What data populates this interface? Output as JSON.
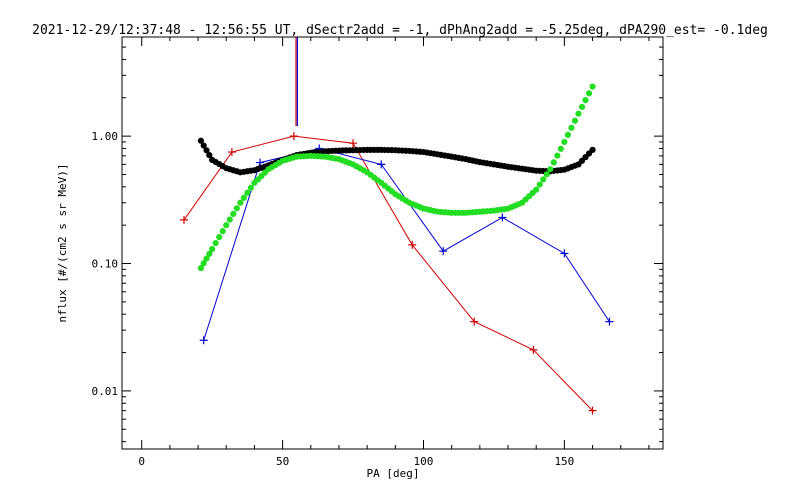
{
  "chart_data": {
    "type": "line",
    "title": "2021-12-29/12:37:48 - 12:56:55 UT, dSectr2add = -1, dPhAng2add = -5.25deg, dPA290_est=  -0.1deg",
    "xlabel": "PA [deg]",
    "ylabel": "nflux [#/(cm2 s sr MeV)]",
    "x_scale": "linear",
    "y_scale": "log",
    "xlim": [
      -7,
      185
    ],
    "ylim": [
      0.0035,
      6.0
    ],
    "x_ticks": [
      0,
      50,
      100,
      150
    ],
    "x_tick_labels": [
      "0",
      "50",
      "100",
      "150"
    ],
    "y_ticks": [
      0.01,
      0.1,
      1.0
    ],
    "y_tick_labels": [
      "0.01",
      "0.10",
      "1.00"
    ],
    "grid": false,
    "series": [
      {
        "color": "#d40000",
        "style": "line-plus",
        "x": [
          15,
          32,
          54,
          75,
          96,
          118,
          139,
          160
        ],
        "y": [
          0.22,
          0.75,
          1.0,
          0.88,
          0.14,
          0.035,
          0.021,
          0.007
        ]
      },
      {
        "color": "#0000d4",
        "style": "line-plus",
        "x": [
          22,
          42,
          63,
          85,
          107,
          128,
          150,
          166
        ],
        "y": [
          0.025,
          0.62,
          0.8,
          0.6,
          0.125,
          0.23,
          0.12,
          0.035
        ]
      },
      {
        "color": "#000000",
        "style": "dots",
        "x": [
          21,
          25,
          30,
          35,
          40,
          45,
          50,
          55,
          60,
          65,
          70,
          75,
          80,
          85,
          90,
          95,
          100,
          105,
          110,
          115,
          120,
          125,
          130,
          135,
          140,
          145,
          150,
          155,
          160
        ],
        "y": [
          0.92,
          0.65,
          0.56,
          0.52,
          0.54,
          0.59,
          0.65,
          0.71,
          0.74,
          0.76,
          0.77,
          0.775,
          0.78,
          0.78,
          0.775,
          0.765,
          0.75,
          0.72,
          0.69,
          0.66,
          0.625,
          0.6,
          0.575,
          0.555,
          0.535,
          0.53,
          0.545,
          0.6,
          0.78
        ]
      },
      {
        "color": "#22dd22",
        "style": "dots",
        "x": [
          21,
          25,
          30,
          35,
          40,
          45,
          50,
          55,
          60,
          65,
          70,
          75,
          80,
          85,
          90,
          95,
          100,
          105,
          110,
          115,
          120,
          125,
          130,
          135,
          140,
          145,
          150,
          155,
          160
        ],
        "y": [
          0.092,
          0.13,
          0.2,
          0.3,
          0.43,
          0.55,
          0.64,
          0.69,
          0.7,
          0.69,
          0.66,
          0.6,
          0.52,
          0.43,
          0.35,
          0.3,
          0.27,
          0.255,
          0.25,
          0.25,
          0.255,
          0.26,
          0.27,
          0.3,
          0.38,
          0.55,
          0.9,
          1.5,
          2.45
        ]
      }
    ],
    "vertical_marker": {
      "x": 55,
      "y_from": 1.2,
      "y_to": 6.0,
      "colors": [
        "#d40000",
        "#0000d4"
      ]
    }
  }
}
